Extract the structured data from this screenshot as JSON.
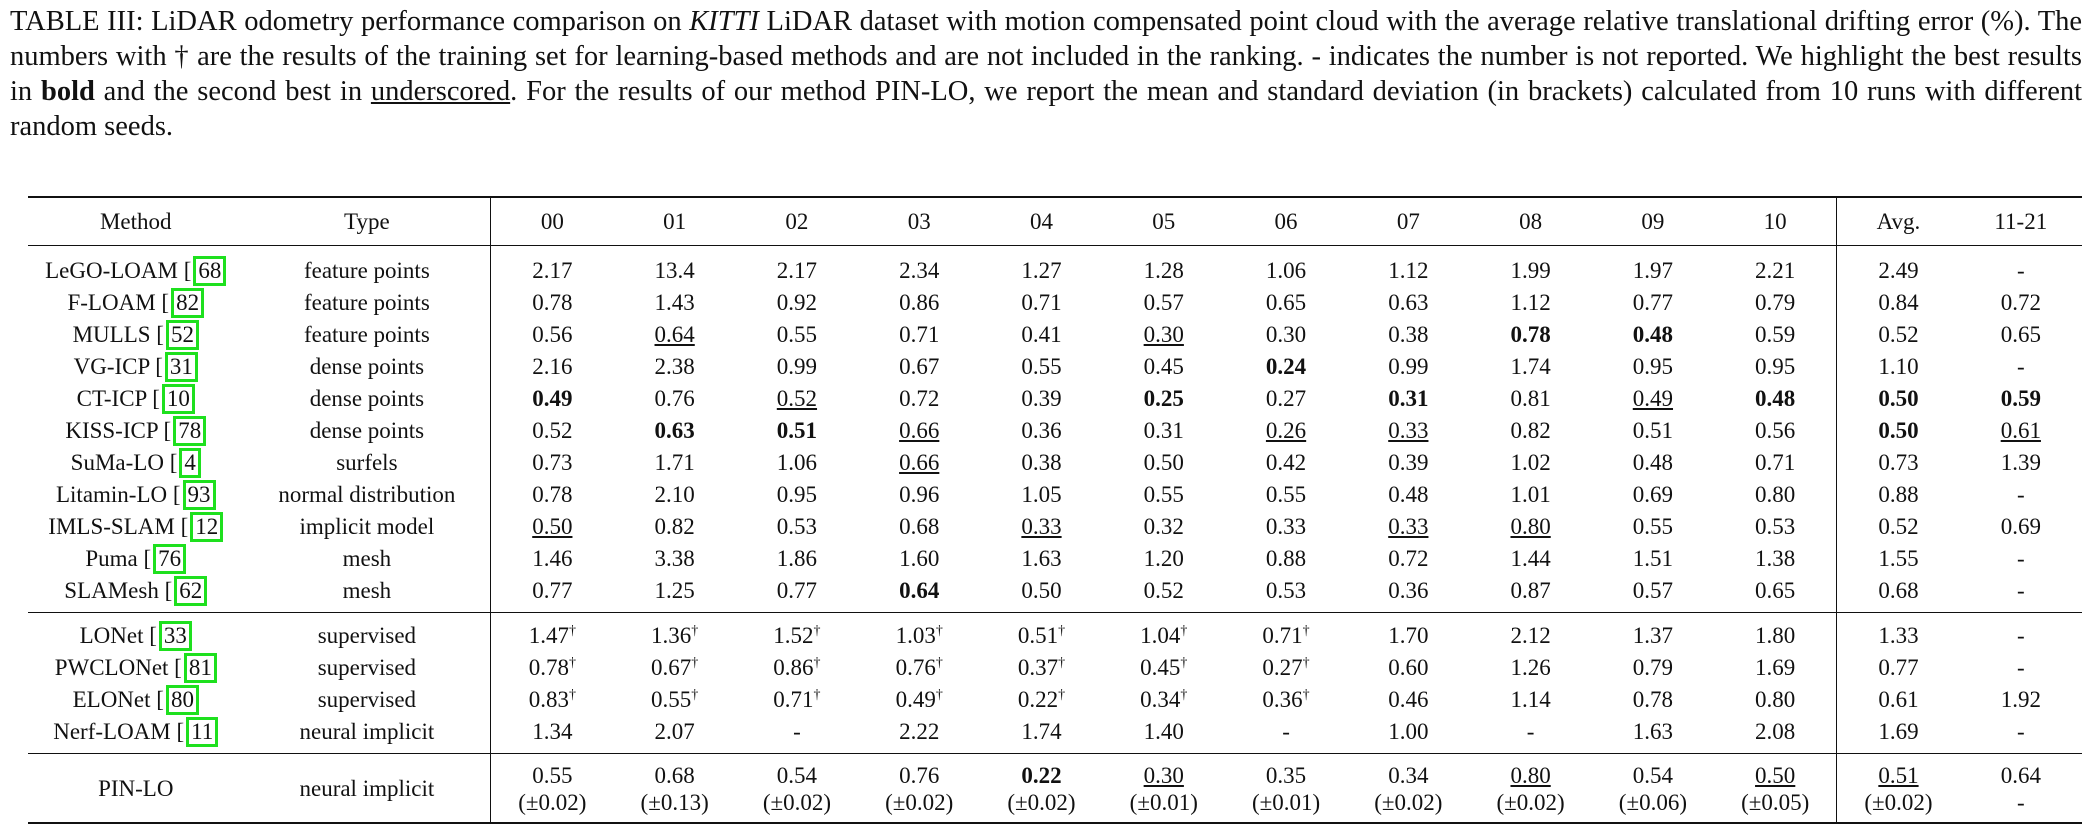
{
  "caption": {
    "p1": "TABLE III: LiDAR odometry performance comparison on ",
    "p1_it": "KITTI",
    "p2": " LiDAR dataset with motion compensated point cloud with the average relative translational drifting error (%). The numbers with † are the results of the training set for learning-based methods and are not included in the ranking. - indicates the number is not reported. We highlight the best results in ",
    "bold_word": "bold",
    "p3": " and the second best in ",
    "underline_word": "underscored",
    "p4": ". For the results of our method PIN-LO, we report the mean and standard deviation (in brackets) calculated from 10 runs with different random seeds."
  },
  "headers": {
    "method": "Method",
    "type": "Type",
    "cols": [
      "00",
      "01",
      "02",
      "03",
      "04",
      "05",
      "06",
      "07",
      "08",
      "09",
      "10"
    ],
    "avg": "Avg.",
    "test": "11-21"
  },
  "groups": [
    {
      "rows": [
        {
          "name": "LeGO-LOAM",
          "ref": "68",
          "type": "feature points",
          "vals": [
            {
              "v": "2.17"
            },
            {
              "v": "13.4"
            },
            {
              "v": "2.17"
            },
            {
              "v": "2.34"
            },
            {
              "v": "1.27"
            },
            {
              "v": "1.28"
            },
            {
              "v": "1.06"
            },
            {
              "v": "1.12"
            },
            {
              "v": "1.99"
            },
            {
              "v": "1.97"
            },
            {
              "v": "2.21"
            }
          ],
          "avg": {
            "v": "2.49"
          },
          "test": {
            "v": "-"
          }
        },
        {
          "name": "F-LOAM",
          "ref": "82",
          "type": "feature points",
          "vals": [
            {
              "v": "0.78"
            },
            {
              "v": "1.43"
            },
            {
              "v": "0.92"
            },
            {
              "v": "0.86"
            },
            {
              "v": "0.71"
            },
            {
              "v": "0.57"
            },
            {
              "v": "0.65"
            },
            {
              "v": "0.63"
            },
            {
              "v": "1.12"
            },
            {
              "v": "0.77"
            },
            {
              "v": "0.79"
            }
          ],
          "avg": {
            "v": "0.84"
          },
          "test": {
            "v": "0.72"
          }
        },
        {
          "name": "MULLS",
          "ref": "52",
          "type": "feature points",
          "vals": [
            {
              "v": "0.56"
            },
            {
              "v": "0.64",
              "s": "u"
            },
            {
              "v": "0.55"
            },
            {
              "v": "0.71"
            },
            {
              "v": "0.41"
            },
            {
              "v": "0.30",
              "s": "u"
            },
            {
              "v": "0.30"
            },
            {
              "v": "0.38"
            },
            {
              "v": "0.78",
              "s": "b"
            },
            {
              "v": "0.48",
              "s": "b"
            },
            {
              "v": "0.59"
            }
          ],
          "avg": {
            "v": "0.52"
          },
          "test": {
            "v": "0.65"
          }
        },
        {
          "name": "VG-ICP",
          "ref": "31",
          "type": "dense points",
          "vals": [
            {
              "v": "2.16"
            },
            {
              "v": "2.38"
            },
            {
              "v": "0.99"
            },
            {
              "v": "0.67"
            },
            {
              "v": "0.55"
            },
            {
              "v": "0.45"
            },
            {
              "v": "0.24",
              "s": "b"
            },
            {
              "v": "0.99"
            },
            {
              "v": "1.74"
            },
            {
              "v": "0.95"
            },
            {
              "v": "0.95"
            }
          ],
          "avg": {
            "v": "1.10"
          },
          "test": {
            "v": "-"
          }
        },
        {
          "name": "CT-ICP",
          "ref": "10",
          "type": "dense points",
          "vals": [
            {
              "v": "0.49",
              "s": "b"
            },
            {
              "v": "0.76"
            },
            {
              "v": "0.52",
              "s": "u"
            },
            {
              "v": "0.72"
            },
            {
              "v": "0.39"
            },
            {
              "v": "0.25",
              "s": "b"
            },
            {
              "v": "0.27"
            },
            {
              "v": "0.31",
              "s": "b"
            },
            {
              "v": "0.81"
            },
            {
              "v": "0.49",
              "s": "u"
            },
            {
              "v": "0.48",
              "s": "b"
            }
          ],
          "avg": {
            "v": "0.50",
            "s": "b"
          },
          "test": {
            "v": "0.59",
            "s": "b"
          }
        },
        {
          "name": "KISS-ICP",
          "ref": "78",
          "type": "dense points",
          "vals": [
            {
              "v": "0.52"
            },
            {
              "v": "0.63",
              "s": "b"
            },
            {
              "v": "0.51",
              "s": "b"
            },
            {
              "v": "0.66",
              "s": "u"
            },
            {
              "v": "0.36"
            },
            {
              "v": "0.31"
            },
            {
              "v": "0.26",
              "s": "u"
            },
            {
              "v": "0.33",
              "s": "u"
            },
            {
              "v": "0.82"
            },
            {
              "v": "0.51"
            },
            {
              "v": "0.56"
            }
          ],
          "avg": {
            "v": "0.50",
            "s": "b"
          },
          "test": {
            "v": "0.61",
            "s": "u"
          }
        },
        {
          "name": "SuMa-LO",
          "ref": "4",
          "type": "surfels",
          "vals": [
            {
              "v": "0.73"
            },
            {
              "v": "1.71"
            },
            {
              "v": "1.06"
            },
            {
              "v": "0.66",
              "s": "u"
            },
            {
              "v": "0.38"
            },
            {
              "v": "0.50"
            },
            {
              "v": "0.42"
            },
            {
              "v": "0.39"
            },
            {
              "v": "1.02"
            },
            {
              "v": "0.48"
            },
            {
              "v": "0.71"
            }
          ],
          "avg": {
            "v": "0.73"
          },
          "test": {
            "v": "1.39"
          }
        },
        {
          "name": "Litamin-LO",
          "ref": "93",
          "type": "normal distribution",
          "vals": [
            {
              "v": "0.78"
            },
            {
              "v": "2.10"
            },
            {
              "v": "0.95"
            },
            {
              "v": "0.96"
            },
            {
              "v": "1.05"
            },
            {
              "v": "0.55"
            },
            {
              "v": "0.55"
            },
            {
              "v": "0.48"
            },
            {
              "v": "1.01"
            },
            {
              "v": "0.69"
            },
            {
              "v": "0.80"
            }
          ],
          "avg": {
            "v": "0.88"
          },
          "test": {
            "v": "-"
          }
        },
        {
          "name": "IMLS-SLAM",
          "ref": "12",
          "type": "implicit model",
          "vals": [
            {
              "v": "0.50",
              "s": "u"
            },
            {
              "v": "0.82"
            },
            {
              "v": "0.53"
            },
            {
              "v": "0.68"
            },
            {
              "v": "0.33",
              "s": "u"
            },
            {
              "v": "0.32"
            },
            {
              "v": "0.33"
            },
            {
              "v": "0.33",
              "s": "u"
            },
            {
              "v": "0.80",
              "s": "u"
            },
            {
              "v": "0.55"
            },
            {
              "v": "0.53"
            }
          ],
          "avg": {
            "v": "0.52"
          },
          "test": {
            "v": "0.69"
          }
        },
        {
          "name": "Puma",
          "ref": "76",
          "type": "mesh",
          "vals": [
            {
              "v": "1.46"
            },
            {
              "v": "3.38"
            },
            {
              "v": "1.86"
            },
            {
              "v": "1.60"
            },
            {
              "v": "1.63"
            },
            {
              "v": "1.20"
            },
            {
              "v": "0.88"
            },
            {
              "v": "0.72"
            },
            {
              "v": "1.44"
            },
            {
              "v": "1.51"
            },
            {
              "v": "1.38"
            }
          ],
          "avg": {
            "v": "1.55"
          },
          "test": {
            "v": "-"
          }
        },
        {
          "name": "SLAMesh",
          "ref": "62",
          "type": "mesh",
          "vals": [
            {
              "v": "0.77"
            },
            {
              "v": "1.25"
            },
            {
              "v": "0.77"
            },
            {
              "v": "0.64",
              "s": "b"
            },
            {
              "v": "0.50"
            },
            {
              "v": "0.52"
            },
            {
              "v": "0.53"
            },
            {
              "v": "0.36"
            },
            {
              "v": "0.87"
            },
            {
              "v": "0.57"
            },
            {
              "v": "0.65"
            }
          ],
          "avg": {
            "v": "0.68"
          },
          "test": {
            "v": "-"
          }
        }
      ]
    },
    {
      "rows": [
        {
          "name": "LONet",
          "ref": "33",
          "type": "supervised",
          "vals": [
            {
              "v": "1.47",
              "d": "†"
            },
            {
              "v": "1.36",
              "d": "†"
            },
            {
              "v": "1.52",
              "d": "†"
            },
            {
              "v": "1.03",
              "d": "†"
            },
            {
              "v": "0.51",
              "d": "†"
            },
            {
              "v": "1.04",
              "d": "†"
            },
            {
              "v": "0.71",
              "d": "†"
            },
            {
              "v": "1.70"
            },
            {
              "v": "2.12"
            },
            {
              "v": "1.37"
            },
            {
              "v": "1.80"
            }
          ],
          "avg": {
            "v": "1.33"
          },
          "test": {
            "v": "-"
          }
        },
        {
          "name": "PWCLONet",
          "ref": "81",
          "type": "supervised",
          "vals": [
            {
              "v": "0.78",
              "d": "†"
            },
            {
              "v": "0.67",
              "d": "†"
            },
            {
              "v": "0.86",
              "d": "†"
            },
            {
              "v": "0.76",
              "d": "†"
            },
            {
              "v": "0.37",
              "d": "†"
            },
            {
              "v": "0.45",
              "d": "†"
            },
            {
              "v": "0.27",
              "d": "†"
            },
            {
              "v": "0.60"
            },
            {
              "v": "1.26"
            },
            {
              "v": "0.79"
            },
            {
              "v": "1.69"
            }
          ],
          "avg": {
            "v": "0.77"
          },
          "test": {
            "v": "-"
          }
        },
        {
          "name": "ELONet",
          "ref": "80",
          "type": "supervised",
          "vals": [
            {
              "v": "0.83",
              "d": "†"
            },
            {
              "v": "0.55",
              "d": "†"
            },
            {
              "v": "0.71",
              "d": "†"
            },
            {
              "v": "0.49",
              "d": "†"
            },
            {
              "v": "0.22",
              "d": "†"
            },
            {
              "v": "0.34",
              "d": "†"
            },
            {
              "v": "0.36",
              "d": "†"
            },
            {
              "v": "0.46"
            },
            {
              "v": "1.14"
            },
            {
              "v": "0.78"
            },
            {
              "v": "0.80"
            }
          ],
          "avg": {
            "v": "0.61"
          },
          "test": {
            "v": "1.92"
          }
        },
        {
          "name": "Nerf-LOAM",
          "ref": "11",
          "type": "neural implicit",
          "vals": [
            {
              "v": "1.34"
            },
            {
              "v": "2.07"
            },
            {
              "v": "-"
            },
            {
              "v": "2.22"
            },
            {
              "v": "1.74"
            },
            {
              "v": "1.40"
            },
            {
              "v": "-"
            },
            {
              "v": "1.00"
            },
            {
              "v": "-"
            },
            {
              "v": "1.63"
            },
            {
              "v": "2.08"
            }
          ],
          "avg": {
            "v": "1.69"
          },
          "test": {
            "v": "-"
          }
        }
      ]
    }
  ],
  "ours": {
    "name": "PIN-LO",
    "type": "neural implicit",
    "vals": [
      {
        "v": "0.55",
        "sd": "(±0.02)"
      },
      {
        "v": "0.68",
        "sd": "(±0.13)"
      },
      {
        "v": "0.54",
        "sd": "(±0.02)"
      },
      {
        "v": "0.76",
        "sd": "(±0.02)"
      },
      {
        "v": "0.22",
        "s": "b",
        "sd": "(±0.02)"
      },
      {
        "v": "0.30",
        "s": "u",
        "sd": "(±0.01)"
      },
      {
        "v": "0.35",
        "sd": "(±0.01)"
      },
      {
        "v": "0.34",
        "sd": "(±0.02)"
      },
      {
        "v": "0.80",
        "s": "u",
        "sd": "(±0.02)"
      },
      {
        "v": "0.54",
        "sd": "(±0.06)"
      },
      {
        "v": "0.50",
        "s": "u",
        "sd": "(±0.05)"
      }
    ],
    "avg": {
      "v": "0.51",
      "s": "u",
      "sd": "(±0.02)"
    },
    "test": {
      "v": "0.64",
      "sd": "-"
    }
  }
}
